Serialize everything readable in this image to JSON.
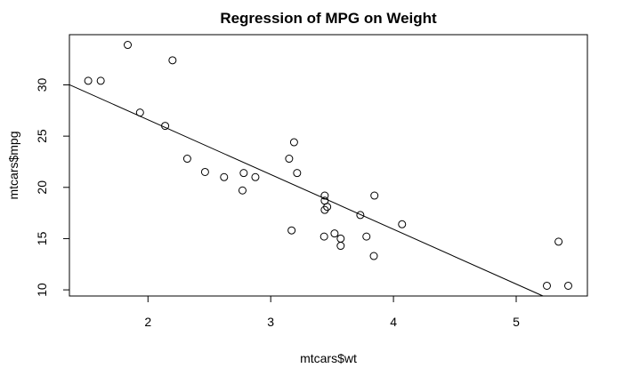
{
  "chart_data": {
    "type": "scatter",
    "title": "Regression of MPG on Weight",
    "xlabel": "mtcars$wt",
    "ylabel": "mtcars$mpg",
    "xlim": [
      1.36,
      5.58
    ],
    "ylim": [
      9.4,
      34.9
    ],
    "xticks": [
      2,
      3,
      4,
      5
    ],
    "yticks": [
      10,
      15,
      20,
      25,
      30
    ],
    "grid": false,
    "series": [
      {
        "points": [
          [
            2.62,
            21.0
          ],
          [
            2.875,
            21.0
          ],
          [
            2.32,
            22.8
          ],
          [
            3.215,
            21.4
          ],
          [
            3.44,
            18.7
          ],
          [
            3.46,
            18.1
          ],
          [
            3.57,
            14.3
          ],
          [
            3.19,
            24.4
          ],
          [
            3.15,
            22.8
          ],
          [
            3.44,
            19.2
          ],
          [
            3.44,
            17.8
          ],
          [
            4.07,
            16.4
          ],
          [
            3.73,
            17.3
          ],
          [
            3.78,
            15.2
          ],
          [
            5.25,
            10.4
          ],
          [
            5.424,
            10.4
          ],
          [
            5.345,
            14.7
          ],
          [
            2.2,
            32.4
          ],
          [
            1.615,
            30.4
          ],
          [
            1.835,
            33.9
          ],
          [
            2.465,
            21.5
          ],
          [
            3.52,
            15.5
          ],
          [
            3.435,
            15.2
          ],
          [
            3.84,
            13.3
          ],
          [
            3.845,
            19.2
          ],
          [
            1.935,
            27.3
          ],
          [
            2.14,
            26.0
          ],
          [
            1.513,
            30.4
          ],
          [
            3.17,
            15.8
          ],
          [
            2.77,
            19.7
          ],
          [
            3.57,
            15.0
          ],
          [
            2.78,
            21.4
          ]
        ]
      }
    ],
    "regression": {
      "intercept": 37.285,
      "slope": -5.344
    }
  }
}
